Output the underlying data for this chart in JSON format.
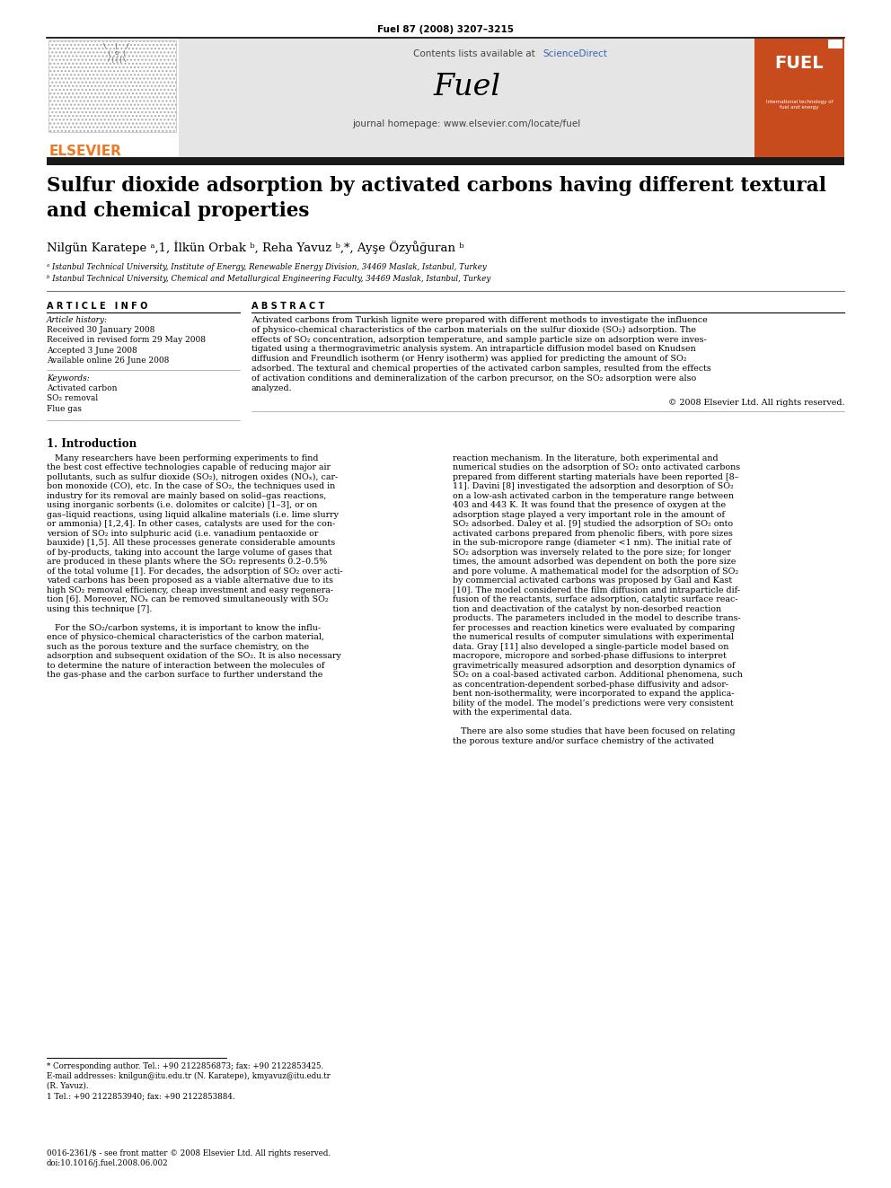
{
  "journal_ref": "Fuel 87 (2008) 3207–3215",
  "contents_line": "Contents lists available at ",
  "sciencedirect": "ScienceDirect",
  "journal_name": "Fuel",
  "journal_homepage": "journal homepage: www.elsevier.com/locate/fuel",
  "title_line1": "Sulfur dioxide adsorption by activated carbons having different textural",
  "title_line2": "and chemical properties",
  "authors": "Nilgün Karatepe ᵃ,1, İlkün Orbak ᵇ, Reha Yavuz ᵇ,*, Ayşe Özyůğuran ᵇ",
  "affil_a": "ᵃ Istanbul Technical University, Institute of Energy, Renewable Energy Division, 34469 Maslak, Istanbul, Turkey",
  "affil_b": "ᵇ Istanbul Technical University, Chemical and Metallurgical Engineering Faculty, 34469 Maslak, Istanbul, Turkey",
  "article_info_header": "A R T I C L E   I N F O",
  "abstract_header": "A B S T R A C T",
  "article_history_label": "Article history:",
  "received": "Received 30 January 2008",
  "received_revised": "Received in revised form 29 May 2008",
  "accepted": "Accepted 3 June 2008",
  "available": "Available online 26 June 2008",
  "keywords_label": "Keywords:",
  "kw1": "Activated carbon",
  "kw2": "SO₂ removal",
  "kw3": "Flue gas",
  "copyright": "© 2008 Elsevier Ltd. All rights reserved.",
  "section1_header": "1. Introduction",
  "footnote_star": "* Corresponding author. Tel.: +90 2122856873; fax: +90 2122853425.",
  "footnote_email": "E-mail addresses: knilgun@itu.edu.tr (N. Karatepe), kmyavuz@itu.edu.tr",
  "footnote_email2": "(R. Yavuz).",
  "footnote_1": "1 Tel.: +90 2122853940; fax: +90 2122853884.",
  "footer_line1": "0016-2361/$ - see front matter © 2008 Elsevier Ltd. All rights reserved.",
  "footer_doi": "doi:10.1016/j.fuel.2008.06.002",
  "header_bg": "#e5e5e5",
  "elsevier_orange": "#f07820",
  "sciencedirect_color": "#3366aa",
  "fuel_cover_bg": "#c84b1e",
  "dark_bar_color": "#1a1a1a",
  "abstract_lines": [
    "Activated carbons from Turkish lignite were prepared with different methods to investigate the influence",
    "of physico-chemical characteristics of the carbon materials on the sulfur dioxide (SO₂) adsorption. The",
    "effects of SO₂ concentration, adsorption temperature, and sample particle size on adsorption were inves-",
    "tigated using a thermogravimetric analysis system. An intraparticle diffusion model based on Knudsen",
    "diffusion and Freundlich isotherm (or Henry isotherm) was applied for predicting the amount of SO₂",
    "adsorbed. The textural and chemical properties of the activated carbon samples, resulted from the effects",
    "of activation conditions and demineralization of the carbon precursor, on the SO₂ adsorption were also",
    "analyzed."
  ],
  "intro_col1_lines": [
    "   Many researchers have been performing experiments to find",
    "the best cost effective technologies capable of reducing major air",
    "pollutants, such as sulfur dioxide (SO₂), nitrogen oxides (NOₓ), car-",
    "bon monoxide (CO), etc. In the case of SO₂, the techniques used in",
    "industry for its removal are mainly based on solid–gas reactions,",
    "using inorganic sorbents (i.e. dolomites or calcite) [1–3], or on",
    "gas–liquid reactions, using liquid alkaline materials (i.e. lime slurry",
    "or ammonia) [1,2,4]. In other cases, catalysts are used for the con-",
    "version of SO₂ into sulphuric acid (i.e. vanadium pentaoxide or",
    "bauxide) [1,5]. All these processes generate considerable amounts",
    "of by-products, taking into account the large volume of gases that",
    "are produced in these plants where the SO₂ represents 0.2–0.5%",
    "of the total volume [1]. For decades, the adsorption of SO₂ over acti-",
    "vated carbons has been proposed as a viable alternative due to its",
    "high SO₂ removal efficiency, cheap investment and easy regenera-",
    "tion [6]. Moreover, NOₓ can be removed simultaneously with SO₂",
    "using this technique [7].",
    "",
    "   For the SO₂/carbon systems, it is important to know the influ-",
    "ence of physico-chemical characteristics of the carbon material,",
    "such as the porous texture and the surface chemistry, on the",
    "adsorption and subsequent oxidation of the SO₂. It is also necessary",
    "to determine the nature of interaction between the molecules of",
    "the gas-phase and the carbon surface to further understand the"
  ],
  "intro_col2_lines": [
    "reaction mechanism. In the literature, both experimental and",
    "numerical studies on the adsorption of SO₂ onto activated carbons",
    "prepared from different starting materials have been reported [8–",
    "11]. Davini [8] investigated the adsorption and desorption of SO₂",
    "on a low-ash activated carbon in the temperature range between",
    "403 and 443 K. It was found that the presence of oxygen at the",
    "adsorption stage played a very important role in the amount of",
    "SO₂ adsorbed. Daley et al. [9] studied the adsorption of SO₂ onto",
    "activated carbons prepared from phenolic fibers, with pore sizes",
    "in the sub-micropore range (diameter <1 nm). The initial rate of",
    "SO₂ adsorption was inversely related to the pore size; for longer",
    "times, the amount adsorbed was dependent on both the pore size",
    "and pore volume. A mathematical model for the adsorption of SO₂",
    "by commercial activated carbons was proposed by Gail and Kast",
    "[10]. The model considered the film diffusion and intraparticle dif-",
    "fusion of the reactants, surface adsorption, catalytic surface reac-",
    "tion and deactivation of the catalyst by non-desorbed reaction",
    "products. The parameters included in the model to describe trans-",
    "fer processes and reaction kinetics were evaluated by comparing",
    "the numerical results of computer simulations with experimental",
    "data. Gray [11] also developed a single-particle model based on",
    "macropore, micropore and sorbed-phase diffusions to interpret",
    "gravimetrically measured adsorption and desorption dynamics of",
    "SO₂ on a coal-based activated carbon. Additional phenomena, such",
    "as concentration-dependent sorbed-phase diffusivity and adsor-",
    "bent non-isothermality, were incorporated to expand the applica-",
    "bility of the model. The model’s predictions were very consistent",
    "with the experimental data.",
    "",
    "   There are also some studies that have been focused on relating",
    "the porous texture and/or surface chemistry of the activated"
  ]
}
